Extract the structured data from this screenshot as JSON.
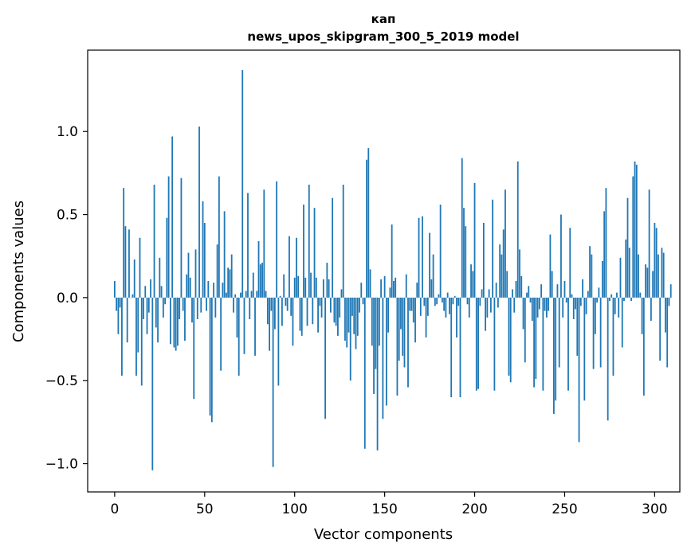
{
  "chart_data": {
    "type": "bar",
    "title_line1": "кап",
    "title_line2": "news_upos_skipgram_300_5_2019 model",
    "xlabel": "Vector components",
    "ylabel": "Components values",
    "xlim": [
      -15,
      314
    ],
    "ylim": [
      -1.17,
      1.49
    ],
    "xticks": [
      0,
      50,
      100,
      150,
      200,
      250,
      300
    ],
    "xtick_labels": [
      "0",
      "50",
      "100",
      "150",
      "200",
      "250",
      "300"
    ],
    "yticks": [
      -1.0,
      -0.5,
      0.0,
      0.5,
      1.0
    ],
    "ytick_labels": [
      "−1.0",
      "−0.5",
      "0.0",
      "0.5",
      "1.0"
    ],
    "bar_color": "#1f77b4",
    "values": [
      0.1,
      -0.08,
      -0.22,
      -0.06,
      -0.47,
      0.66,
      0.43,
      -0.27,
      0.41,
      0.0,
      0.02,
      0.23,
      -0.47,
      -0.33,
      0.36,
      -0.53,
      -0.13,
      0.07,
      -0.22,
      -0.09,
      0.11,
      -1.04,
      0.68,
      -0.18,
      -0.27,
      0.24,
      0.07,
      -0.12,
      -0.04,
      0.48,
      0.73,
      -0.28,
      0.97,
      -0.3,
      -0.32,
      -0.29,
      -0.13,
      0.72,
      -0.08,
      -0.26,
      0.14,
      0.27,
      0.12,
      -0.15,
      -0.61,
      0.29,
      -0.13,
      1.03,
      -0.09,
      0.58,
      0.45,
      -0.08,
      0.1,
      -0.71,
      -0.75,
      0.09,
      -0.12,
      0.32,
      0.73,
      -0.44,
      0.09,
      0.52,
      0.03,
      0.18,
      0.17,
      0.26,
      -0.09,
      0.02,
      -0.24,
      -0.47,
      0.03,
      1.37,
      -0.34,
      0.04,
      0.63,
      -0.13,
      0.04,
      0.15,
      -0.35,
      0.04,
      0.34,
      0.2,
      0.21,
      0.65,
      0.04,
      -0.16,
      -0.32,
      -0.08,
      -1.02,
      -0.19,
      0.7,
      -0.53,
      0.01,
      -0.17,
      0.14,
      -0.05,
      -0.08,
      0.37,
      -0.11,
      -0.29,
      0.12,
      0.36,
      0.13,
      -0.2,
      -0.23,
      0.56,
      0.12,
      -0.17,
      0.68,
      0.15,
      -0.16,
      0.54,
      0.12,
      -0.21,
      -0.05,
      -0.12,
      0.11,
      -0.73,
      0.21,
      0.11,
      -0.09,
      0.6,
      -0.15,
      -0.17,
      -0.23,
      -0.12,
      0.05,
      0.68,
      -0.26,
      -0.3,
      -0.21,
      -0.5,
      -0.11,
      -0.22,
      -0.31,
      -0.23,
      -0.09,
      0.09,
      -0.04,
      -0.91,
      0.83,
      0.9,
      0.17,
      -0.29,
      -0.58,
      -0.43,
      -0.92,
      -0.29,
      0.11,
      -0.73,
      0.13,
      -0.65,
      -0.21,
      0.06,
      0.44,
      0.1,
      0.12,
      -0.59,
      -0.38,
      -0.19,
      -0.35,
      -0.42,
      0.14,
      -0.54,
      -0.08,
      -0.08,
      -0.15,
      -0.27,
      0.09,
      0.48,
      -0.11,
      0.49,
      -0.05,
      -0.24,
      -0.11,
      0.39,
      0.11,
      0.26,
      -0.05,
      -0.04,
      0.02,
      0.56,
      -0.03,
      -0.08,
      -0.12,
      0.03,
      -0.1,
      -0.6,
      -0.04,
      0.01,
      -0.24,
      -0.05,
      -0.6,
      0.84,
      0.54,
      0.43,
      -0.04,
      -0.12,
      0.2,
      0.16,
      0.69,
      -0.56,
      -0.55,
      -0.05,
      0.05,
      0.45,
      -0.2,
      -0.12,
      0.05,
      -0.09,
      0.59,
      -0.56,
      0.09,
      -0.06,
      0.32,
      0.26,
      0.41,
      0.65,
      0.16,
      -0.47,
      -0.51,
      0.05,
      -0.09,
      0.1,
      0.82,
      0.29,
      0.13,
      -0.19,
      -0.39,
      0.03,
      0.07,
      -0.03,
      -0.14,
      -0.54,
      -0.49,
      -0.12,
      -0.07,
      0.08,
      -0.56,
      -0.08,
      -0.12,
      -0.08,
      0.38,
      0.16,
      -0.7,
      -0.62,
      0.08,
      -0.42,
      0.5,
      -0.12,
      0.1,
      -0.03,
      -0.56,
      0.42,
      0.02,
      -0.13,
      -0.07,
      -0.35,
      -0.87,
      -0.05,
      0.11,
      -0.62,
      -0.1,
      0.04,
      0.31,
      0.26,
      -0.43,
      -0.22,
      -0.03,
      0.06,
      -0.42,
      0.22,
      0.52,
      0.66,
      -0.74,
      -0.02,
      0.02,
      -0.47,
      -0.1,
      0.03,
      -0.12,
      0.24,
      -0.3,
      -0.02,
      0.35,
      0.6,
      0.3,
      -0.02,
      0.73,
      0.82,
      0.8,
      0.26,
      0.03,
      -0.22,
      -0.59,
      0.2,
      0.18,
      0.65,
      -0.14,
      0.16,
      0.45,
      0.42,
      0.26,
      -0.38,
      0.3,
      0.27,
      -0.21,
      -0.42,
      -0.05,
      0.08
    ]
  }
}
